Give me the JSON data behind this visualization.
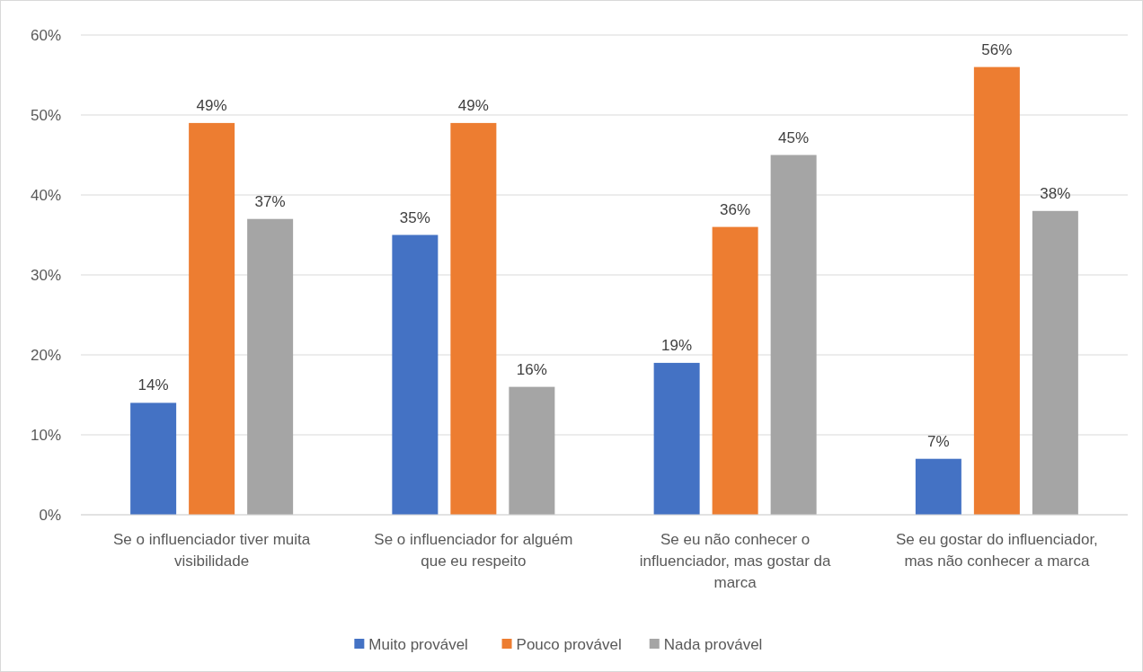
{
  "chart_data": {
    "type": "bar",
    "categories": [
      "Se o influenciador tiver muita visibilidade",
      "Se o influenciador for alguém que eu respeito",
      "Se eu não conhecer o influenciador, mas gostar da marca",
      "Se eu gostar do influenciador, mas não conhecer a marca"
    ],
    "series": [
      {
        "name": "Muito provável",
        "color": "#4472c4",
        "values": [
          14,
          35,
          19,
          7
        ],
        "value_labels": [
          "14%",
          "35%",
          "19%",
          "7%"
        ]
      },
      {
        "name": "Pouco provável",
        "color": "#ed7d31",
        "values": [
          49,
          49,
          36,
          56
        ],
        "value_labels": [
          "49%",
          "49%",
          "36%",
          "56%"
        ]
      },
      {
        "name": "Nada provável",
        "color": "#a5a5a5",
        "values": [
          37,
          16,
          45,
          38
        ],
        "value_labels": [
          "37%",
          "16%",
          "45%",
          "38%"
        ]
      }
    ],
    "ylim": [
      0,
      60
    ],
    "yticks": [
      {
        "value": 0,
        "label": "0%"
      },
      {
        "value": 10,
        "label": "10%"
      },
      {
        "value": 20,
        "label": "20%"
      },
      {
        "value": 30,
        "label": "30%"
      },
      {
        "value": 40,
        "label": "40%"
      },
      {
        "value": 50,
        "label": "50%"
      },
      {
        "value": 60,
        "label": "60%"
      }
    ],
    "grid": "y",
    "legend": "bottom"
  }
}
